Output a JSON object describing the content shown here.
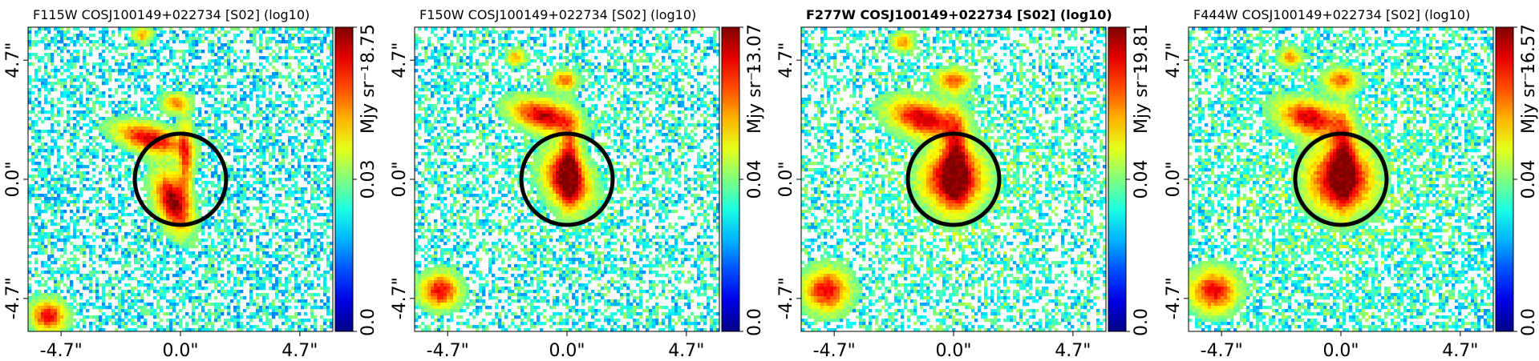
{
  "chart_data": [
    {
      "type": "heatmap",
      "title": "F115W COSJ100149+022734 [S02] (log10)",
      "title_bold": false,
      "colorbar": {
        "ticks": [
          "0.0",
          "0.03",
          "8.75"
        ],
        "label": "Mjy sr⁻¹",
        "colormap": "jet"
      },
      "x_ticks": [
        "-4.7\"",
        "0.0\"",
        "4.7\""
      ],
      "y_ticks": [
        "-4.7\"",
        "0.0\"",
        "4.7\""
      ],
      "xlim": [
        -6.0,
        6.0
      ],
      "ylim": [
        -6.0,
        6.0
      ],
      "aperture": {
        "x": 0.0,
        "y": 0.0,
        "r": 1.8
      },
      "sources": [
        {
          "x": -1.2,
          "y": 1.6,
          "sx": 0.9,
          "sy": 0.35,
          "rot": -15,
          "peak": 0.85
        },
        {
          "x": 0.2,
          "y": 0.8,
          "sx": 0.2,
          "sy": 1.0,
          "rot": 0,
          "peak": 0.6
        },
        {
          "x": -0.3,
          "y": -0.9,
          "sx": 0.4,
          "sy": 0.8,
          "rot": 20,
          "peak": 1.0
        },
        {
          "x": -0.2,
          "y": 3.0,
          "sx": 0.35,
          "sy": 0.25,
          "rot": 0,
          "peak": 0.55
        },
        {
          "x": -1.5,
          "y": 5.7,
          "sx": 0.25,
          "sy": 0.2,
          "rot": 0,
          "peak": 0.5
        },
        {
          "x": -5.2,
          "y": -5.4,
          "sx": 0.45,
          "sy": 0.4,
          "rot": 0,
          "peak": 0.8
        }
      ],
      "noise_fill": 0.55,
      "halo": 0.0
    },
    {
      "type": "heatmap",
      "title": "F150W COSJ100149+022734 [S02] (log10)",
      "title_bold": false,
      "colorbar": {
        "ticks": [
          "0.0",
          "0.04",
          "13.07"
        ],
        "label": "Mjy sr⁻¹",
        "colormap": "jet"
      },
      "x_ticks": [
        "-4.7\"",
        "0.0\"",
        "4.7\""
      ],
      "y_ticks": [
        "-4.7\"",
        "0.0\"",
        "4.7\""
      ],
      "xlim": [
        -6.0,
        6.0
      ],
      "ylim": [
        -6.0,
        6.0
      ],
      "aperture": {
        "x": 0.0,
        "y": 0.0,
        "r": 1.8
      },
      "sources": [
        {
          "x": -0.9,
          "y": 2.5,
          "sx": 0.85,
          "sy": 0.4,
          "rot": -15,
          "peak": 0.9
        },
        {
          "x": 0.1,
          "y": 0.7,
          "sx": 0.25,
          "sy": 1.1,
          "rot": 0,
          "peak": 0.6
        },
        {
          "x": 0.0,
          "y": 0.0,
          "sx": 0.55,
          "sy": 0.75,
          "rot": 25,
          "peak": 1.0
        },
        {
          "x": -0.1,
          "y": 3.9,
          "sx": 0.35,
          "sy": 0.25,
          "rot": 0,
          "peak": 0.6
        },
        {
          "x": -2.0,
          "y": 4.8,
          "sx": 0.25,
          "sy": 0.2,
          "rot": 0,
          "peak": 0.5
        },
        {
          "x": -5.0,
          "y": -4.4,
          "sx": 0.5,
          "sy": 0.45,
          "rot": 0,
          "peak": 0.8
        }
      ],
      "noise_fill": 0.5,
      "halo": 0.35
    },
    {
      "type": "heatmap",
      "title": "F277W COSJ100149+022734 [S02] (log10)",
      "title_bold": true,
      "colorbar": {
        "ticks": [
          "0.0",
          "0.04",
          "19.81"
        ],
        "label": "Mjy sr⁻¹",
        "colormap": "jet"
      },
      "x_ticks": [
        "-4.7\"",
        "0.0\"",
        "4.7\""
      ],
      "y_ticks": [
        "-4.7\"",
        "0.0\"",
        "4.7\""
      ],
      "xlim": [
        -6.0,
        6.0
      ],
      "ylim": [
        -6.0,
        6.0
      ],
      "aperture": {
        "x": 0.0,
        "y": 0.0,
        "r": 1.8
      },
      "sources": [
        {
          "x": -1.2,
          "y": 2.4,
          "sx": 0.9,
          "sy": 0.45,
          "rot": -15,
          "peak": 0.9
        },
        {
          "x": 0.1,
          "y": 0.9,
          "sx": 0.3,
          "sy": 1.2,
          "rot": 0,
          "peak": 0.65
        },
        {
          "x": 0.0,
          "y": 0.0,
          "sx": 0.8,
          "sy": 0.8,
          "rot": 20,
          "peak": 1.0
        },
        {
          "x": 0.0,
          "y": 3.9,
          "sx": 0.45,
          "sy": 0.3,
          "rot": 0,
          "peak": 0.6
        },
        {
          "x": -2.0,
          "y": 5.4,
          "sx": 0.3,
          "sy": 0.25,
          "rot": 0,
          "peak": 0.5
        },
        {
          "x": -5.0,
          "y": -4.4,
          "sx": 0.6,
          "sy": 0.55,
          "rot": 0,
          "peak": 0.8
        }
      ],
      "noise_fill": 0.45,
      "halo": 0.8
    },
    {
      "type": "heatmap",
      "title": "F444W COSJ100149+022734 [S02] (log10)",
      "title_bold": false,
      "colorbar": {
        "ticks": [
          "0.0",
          "0.04",
          "16.57"
        ],
        "label": "Mjy sr⁻¹",
        "colormap": "jet"
      },
      "x_ticks": [
        "-4.7\"",
        "0.0\"",
        "4.7\""
      ],
      "y_ticks": [
        "-4.7\"",
        "0.0\"",
        "4.7\""
      ],
      "xlim": [
        -6.0,
        6.0
      ],
      "ylim": [
        -6.0,
        6.0
      ],
      "aperture": {
        "x": 0.0,
        "y": 0.0,
        "r": 1.8
      },
      "sources": [
        {
          "x": -1.2,
          "y": 2.4,
          "sx": 0.85,
          "sy": 0.45,
          "rot": -15,
          "peak": 0.85
        },
        {
          "x": 0.1,
          "y": 0.9,
          "sx": 0.3,
          "sy": 1.2,
          "rot": 0,
          "peak": 0.6
        },
        {
          "x": 0.0,
          "y": 0.0,
          "sx": 0.85,
          "sy": 0.85,
          "rot": 20,
          "peak": 1.0
        },
        {
          "x": 0.0,
          "y": 3.9,
          "sx": 0.45,
          "sy": 0.3,
          "rot": 0,
          "peak": 0.6
        },
        {
          "x": -2.0,
          "y": 4.8,
          "sx": 0.3,
          "sy": 0.25,
          "rot": 0,
          "peak": 0.5
        },
        {
          "x": -5.0,
          "y": -4.4,
          "sx": 0.6,
          "sy": 0.55,
          "rot": 0,
          "peak": 0.8
        }
      ],
      "noise_fill": 0.55,
      "halo": 0.8
    }
  ]
}
